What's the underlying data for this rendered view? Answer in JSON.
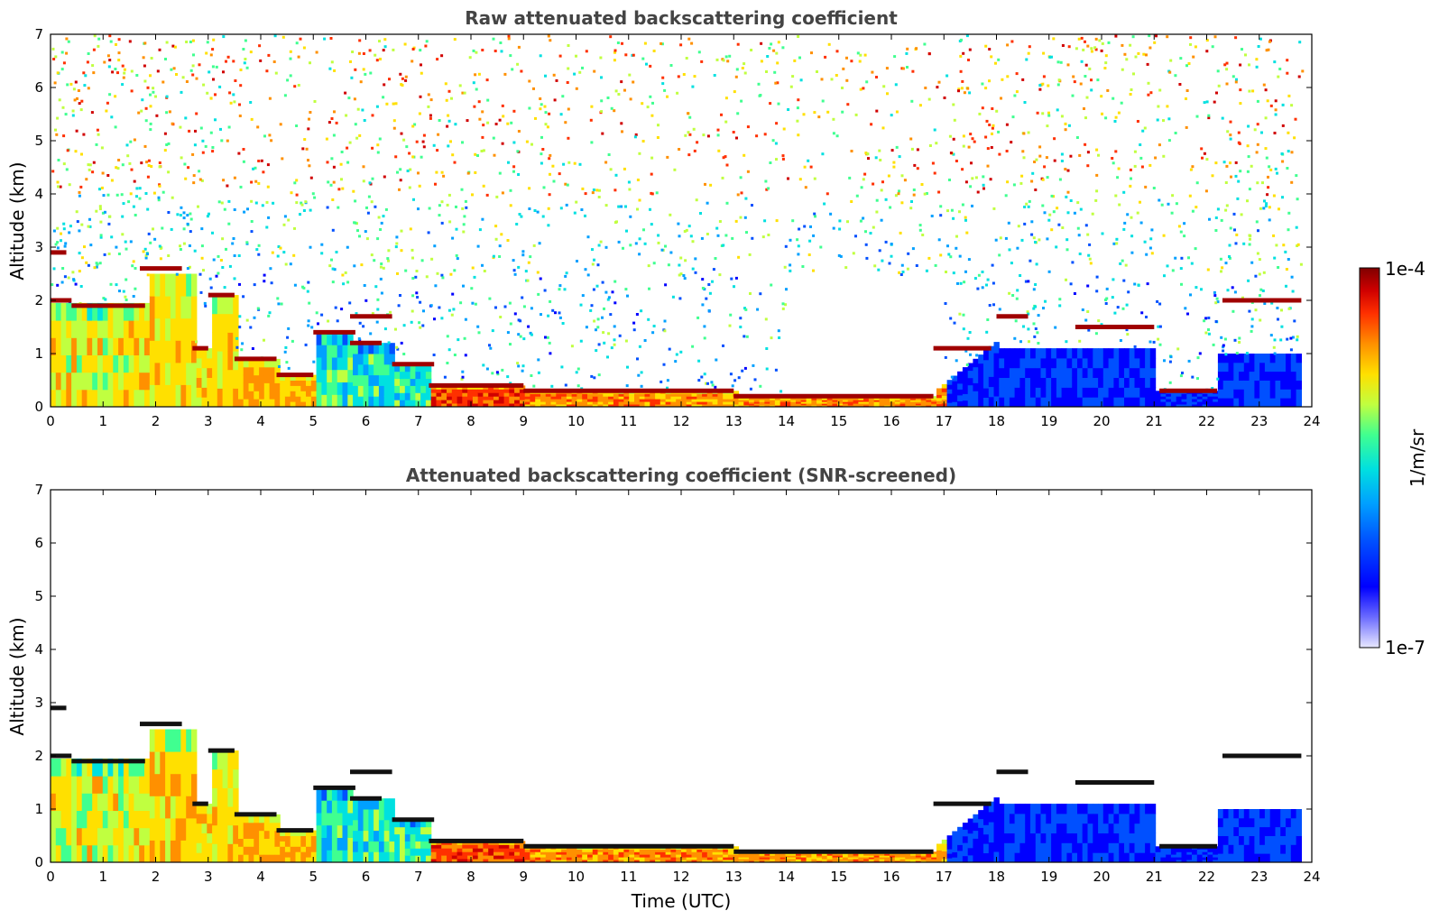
{
  "chart_data": [
    {
      "type": "heatmap",
      "title": "Raw attenuated backscattering coefficient",
      "xlabel": "",
      "ylabel": "Altitude (km)",
      "xlim": [
        0,
        24
      ],
      "ylim": [
        0,
        7
      ],
      "xticks": [
        "0",
        "1",
        "2",
        "3",
        "4",
        "5",
        "6",
        "7",
        "8",
        "9",
        "10",
        "11",
        "12",
        "13",
        "14",
        "15",
        "16",
        "17",
        "18",
        "19",
        "20",
        "21",
        "22",
        "23",
        "24"
      ],
      "yticks": [
        "0",
        "1",
        "2",
        "3",
        "4",
        "5",
        "6",
        "7"
      ],
      "cloud_layers": [
        {
          "x": [
            0.0,
            0.3
          ],
          "y": 2.9
        },
        {
          "x": [
            0.0,
            0.4
          ],
          "y": 2.0
        },
        {
          "x": [
            0.4,
            1.8
          ],
          "y": 1.9
        },
        {
          "x": [
            1.7,
            2.5
          ],
          "y": 2.6
        },
        {
          "x": [
            2.7,
            3.0
          ],
          "y": 1.1
        },
        {
          "x": [
            3.0,
            3.5
          ],
          "y": 2.1
        },
        {
          "x": [
            3.5,
            4.3
          ],
          "y": 0.9
        },
        {
          "x": [
            4.3,
            5.0
          ],
          "y": 0.6
        },
        {
          "x": [
            5.0,
            5.8
          ],
          "y": 1.4
        },
        {
          "x": [
            5.7,
            6.3
          ],
          "y": 1.2
        },
        {
          "x": [
            5.7,
            6.5
          ],
          "y": 1.7
        },
        {
          "x": [
            6.5,
            7.3
          ],
          "y": 0.8
        },
        {
          "x": [
            7.2,
            9.0
          ],
          "y": 0.4
        },
        {
          "x": [
            9.0,
            13.0
          ],
          "y": 0.3
        },
        {
          "x": [
            13.0,
            16.8
          ],
          "y": 0.2
        },
        {
          "x": [
            16.8,
            17.9
          ],
          "y": 1.1
        },
        {
          "x": [
            18.0,
            18.6
          ],
          "y": 1.7
        },
        {
          "x": [
            19.5,
            21.0
          ],
          "y": 1.5
        },
        {
          "x": [
            21.1,
            22.2
          ],
          "y": 0.3
        },
        {
          "x": [
            22.3,
            23.8
          ],
          "y": 2.0
        }
      ]
    },
    {
      "type": "heatmap",
      "title": "Attenuated backscattering coefficient (SNR-screened)",
      "xlabel": "Time (UTC)",
      "ylabel": "Altitude (km)",
      "xlim": [
        0,
        24
      ],
      "ylim": [
        0,
        7
      ],
      "xticks": [
        "0",
        "1",
        "2",
        "3",
        "4",
        "5",
        "6",
        "7",
        "8",
        "9",
        "10",
        "11",
        "12",
        "13",
        "14",
        "15",
        "16",
        "17",
        "18",
        "19",
        "20",
        "21",
        "22",
        "23",
        "24"
      ],
      "yticks": [
        "0",
        "1",
        "2",
        "3",
        "4",
        "5",
        "6",
        "7"
      ]
    }
  ],
  "colorbar": {
    "label": "1/m/sr",
    "max_label": "1e-4",
    "min_label": "1e-7",
    "colors": [
      "#e8e8ff",
      "#6b6bff",
      "#0000ff",
      "#0050ff",
      "#00a0ff",
      "#00e0e0",
      "#40ff90",
      "#c0ff40",
      "#ffe000",
      "#ff9000",
      "#ff3000",
      "#d00000",
      "#800000"
    ]
  }
}
